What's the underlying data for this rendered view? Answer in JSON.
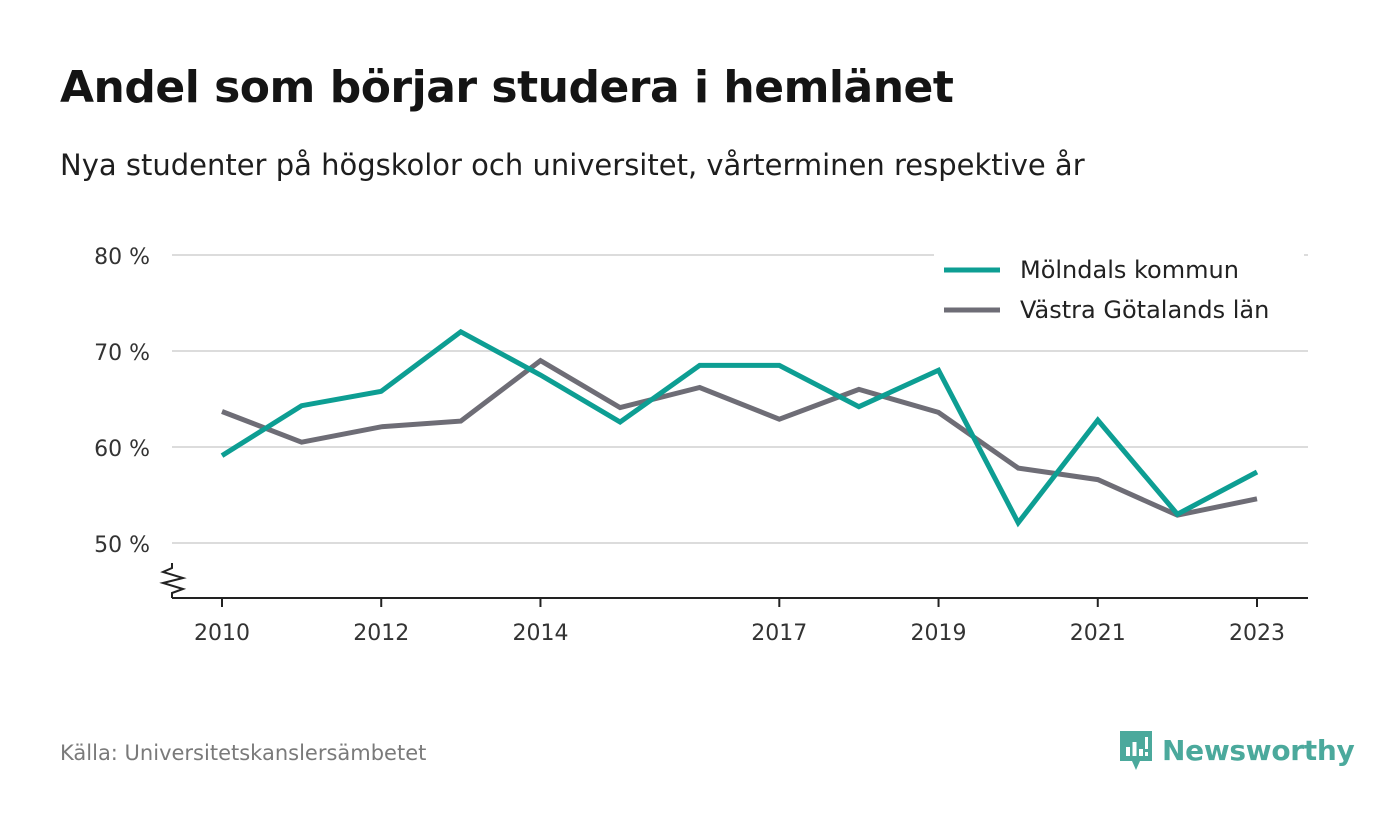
{
  "title": "Andel som börjar studera i hemlänet",
  "subtitle": "Nya studenter på högskolor och universitet, vårterminen respektive år",
  "source": "Källa: Universitetskanslersämbetet",
  "brand": {
    "name": "Newsworthy",
    "color": "#4ba99c",
    "icon": "newsworthy-logo-icon"
  },
  "chart_data": {
    "type": "line",
    "title": "Andel som börjar studera i hemlänet",
    "subtitle": "Nya studenter på högskolor och universitet, vårterminen respektive år",
    "x": [
      2010,
      2011,
      2012,
      2013,
      2014,
      2015,
      2016,
      2017,
      2018,
      2019,
      2020,
      2021,
      2022,
      2023
    ],
    "xticks": [
      2010,
      2012,
      2014,
      2017,
      2019,
      2021,
      2023
    ],
    "xtick_labels": [
      "2010",
      "2012",
      "2014",
      "2017",
      "2019",
      "2021",
      "2023"
    ],
    "yticks": [
      50,
      60,
      70,
      80
    ],
    "ytick_labels": [
      "50 %",
      "60 %",
      "70 %",
      "80 %"
    ],
    "ylim": [
      44.3,
      80
    ],
    "xlim": [
      2009.35,
      2023.65
    ],
    "grid": true,
    "axis_break": true,
    "legend_position": "top-right",
    "series": [
      {
        "name": "Mölndals kommun",
        "color": "#0d9e93",
        "values": [
          59.1,
          64.3,
          65.8,
          72.0,
          67.5,
          62.6,
          68.5,
          68.5,
          64.2,
          68.0,
          52.1,
          62.8,
          53.0,
          57.4
        ]
      },
      {
        "name": "Västra Götalands län",
        "color": "#6e6d76",
        "values": [
          63.7,
          60.5,
          62.1,
          62.7,
          69.0,
          64.1,
          66.2,
          62.9,
          66.0,
          63.6,
          57.8,
          56.6,
          52.9,
          54.6
        ]
      }
    ]
  }
}
